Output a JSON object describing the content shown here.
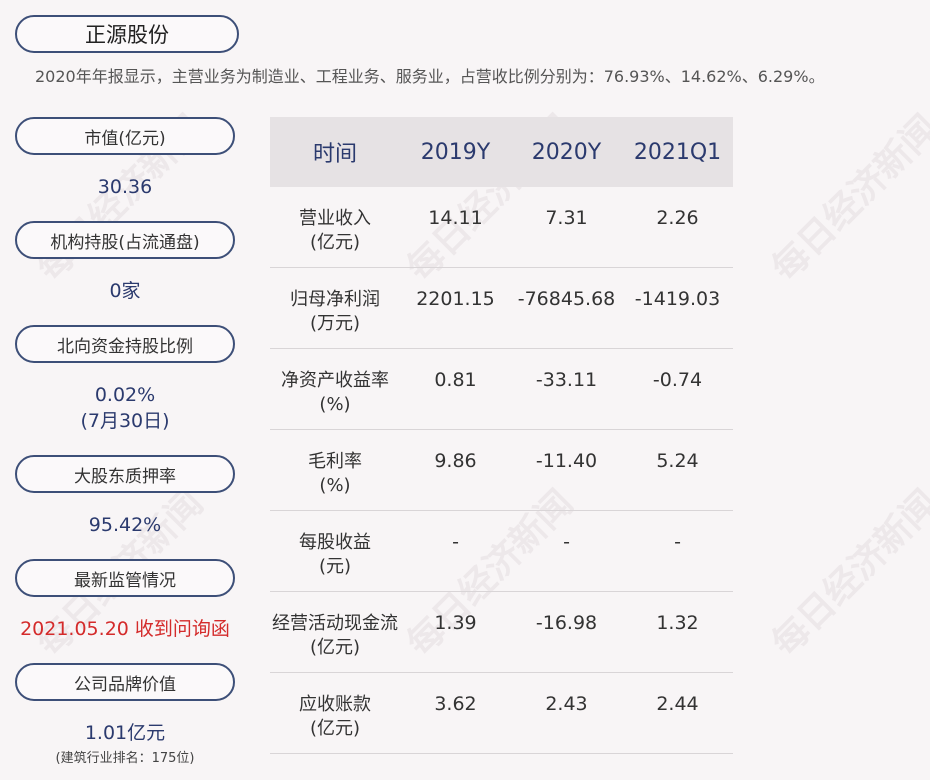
{
  "title": "正源股份",
  "summary": "2020年年报显示，主营业务为制造业、工程业务、服务业，占营收比例分别为：76.93%、14.62%、6.29%。",
  "left": {
    "market_cap_label": "市值(亿元)",
    "market_cap_value": "30.36",
    "institution_label": "机构持股(占流通盘)",
    "institution_value": "0家",
    "northbound_label": "北向资金持股比例",
    "northbound_value": "0.02%",
    "northbound_date": "(7月30日)",
    "pledge_label": "大股东质押率",
    "pledge_value": "95.42%",
    "regulation_label": "最新监管情况",
    "regulation_value": "2021.05.20 收到问询函",
    "brand_label": "公司品牌价值",
    "brand_value": "1.01亿元",
    "brand_rank": "(建筑行业排名：175位)"
  },
  "table": {
    "headers": [
      "时间",
      "2019Y",
      "2020Y",
      "2021Q1"
    ],
    "rows": [
      {
        "label1": "营业收入",
        "label2": "(亿元)",
        "values": [
          "14.11",
          "7.31",
          "2.26"
        ]
      },
      {
        "label1": "归母净利润",
        "label2": "(万元)",
        "values": [
          "2201.15",
          "-76845.68",
          "-1419.03"
        ]
      },
      {
        "label1": "净资产收益率",
        "label2": "(%)",
        "values": [
          "0.81",
          "-33.11",
          "-0.74"
        ]
      },
      {
        "label1": "毛利率",
        "label2": "(%)",
        "values": [
          "9.86",
          "-11.40",
          "5.24"
        ]
      },
      {
        "label1": "每股收益",
        "label2": "(元)",
        "values": [
          "-",
          "-",
          "-"
        ]
      },
      {
        "label1": "经营活动现金流",
        "label2": "(亿元)",
        "values": [
          "1.39",
          "-16.98",
          "1.32"
        ]
      },
      {
        "label1": "应收账款",
        "label2": "(亿元)",
        "values": [
          "3.62",
          "2.43",
          "2.44"
        ]
      }
    ]
  },
  "watermark": "每日经济新闻"
}
